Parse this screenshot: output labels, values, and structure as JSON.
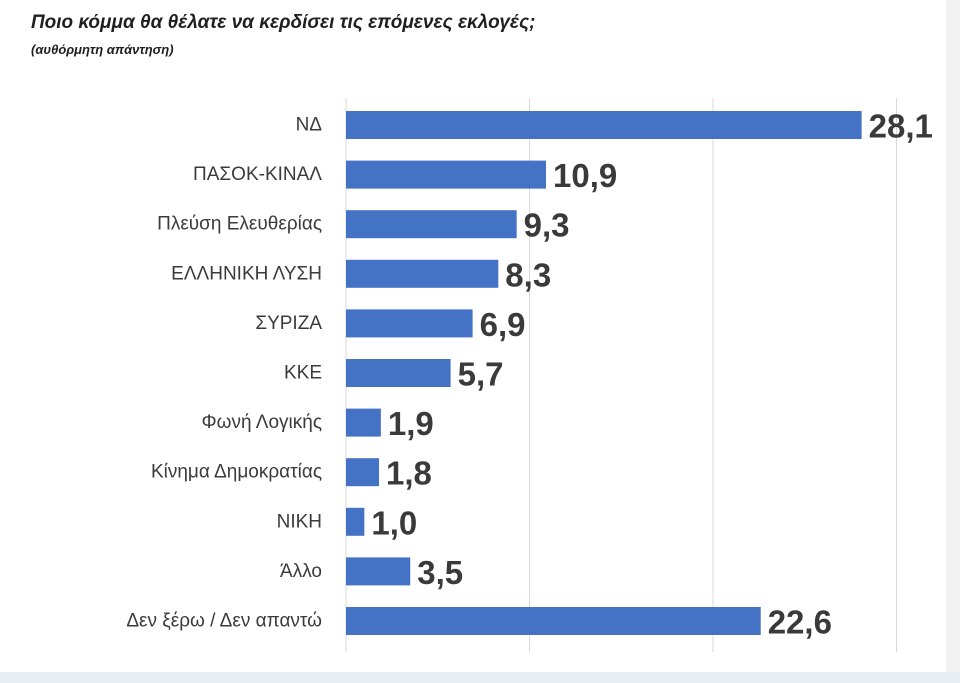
{
  "title": "Ποιο κόμμα θα θέλατε να κερδίσει τις επόμενες εκλογές;",
  "subtitle": "(αυθόρμητη απάντηση)",
  "chart_data": {
    "type": "bar",
    "orientation": "horizontal",
    "title": "Ποιο κόμμα θα θέλατε να κερδίσει τις επόμενες εκλογές;",
    "subtitle": "(αυθόρμητη απάντηση)",
    "categories": [
      "ΝΔ",
      "ΠΑΣΟΚ-ΚΙΝΑΛ",
      "Πλεύση Ελευθερίας",
      "ΕΛΛΗΝΙΚΗ ΛΥΣΗ",
      "ΣΥΡΙΖΑ",
      "ΚΚΕ",
      "Φωνή Λογικής",
      "Κίνημα Δημοκρατίας",
      "ΝΙΚΗ",
      "Άλλο",
      "Δεν ξέρω / Δεν απαντώ"
    ],
    "values": [
      28.1,
      10.9,
      9.3,
      8.3,
      6.9,
      5.7,
      1.9,
      1.8,
      1.0,
      3.5,
      22.6
    ],
    "value_labels": [
      "28,1",
      "10,9",
      "9,3",
      "8,3",
      "6,9",
      "5,7",
      "1,9",
      "1,8",
      "1,0",
      "3,5",
      "22,6"
    ],
    "xlim": [
      0,
      30
    ],
    "grid": true,
    "bar_color": "#4472c4",
    "gridline_color": "#d9d9d9"
  }
}
